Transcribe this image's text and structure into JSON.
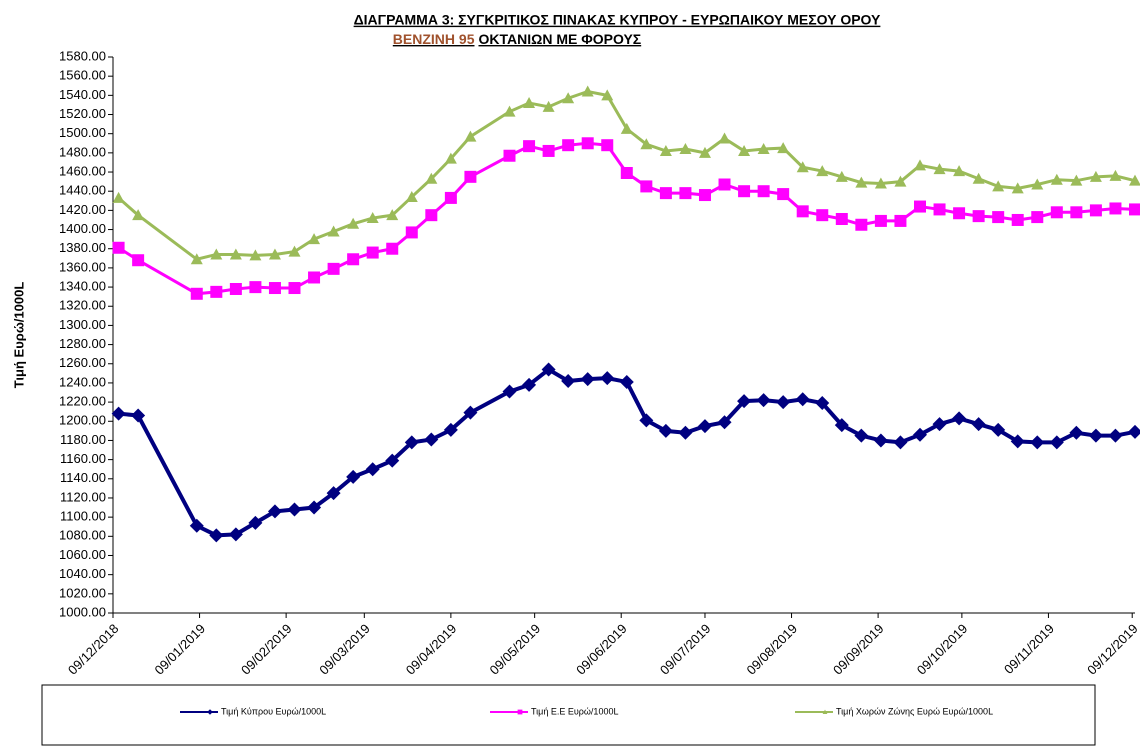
{
  "chart_data": {
    "type": "line",
    "title": "ΔΙΑΓΡΑΜΜΑ 3: ΣΥΓΚΡΙΤΙΚΟΣ ΠΙΝΑΚΑΣ ΚΥΠΡΟΥ - ΕΥΡΩΠΑΙΚΟΥ ΜΕΣΟΥ ΟΡΟΥ",
    "subtitle": [
      "ΒΕΝΖΙΝΗ 95",
      "ΟΚΤΑΝΙΩΝ ΜΕ ΦΟΡΟΥΣ"
    ],
    "subtitle_colors": [
      "#a0522d",
      "#000000"
    ],
    "y_label": "Τιμή Ευρώ/1000L",
    "x": [
      "11/12/2018",
      "18/12/2018",
      "08/01/2019",
      "15/01/2019",
      "22/01/2019",
      "29/01/2019",
      "05/02/2019",
      "12/02/2019",
      "19/02/2019",
      "26/02/2019",
      "05/03/2019",
      "12/03/2019",
      "19/03/2019",
      "26/03/2019",
      "02/04/2019",
      "09/04/2019",
      "16/04/2019",
      "30/04/2019",
      "07/05/2019",
      "14/05/2019",
      "21/05/2019",
      "28/05/2019",
      "04/06/2019",
      "11/06/2019",
      "18/06/2019",
      "25/06/2019",
      "02/07/2019",
      "09/07/2019",
      "16/07/2019",
      "23/07/2019",
      "30/07/2019",
      "06/08/2019",
      "13/08/2019",
      "20/08/2019",
      "27/08/2019",
      "03/09/2019",
      "10/09/2019",
      "17/09/2019",
      "24/09/2019",
      "01/10/2019",
      "08/10/2019",
      "15/10/2019",
      "22/10/2019",
      "29/10/2019",
      "05/11/2019",
      "12/11/2019",
      "19/11/2019",
      "26/11/2019",
      "03/12/2019",
      "10/12/2019"
    ],
    "series": [
      {
        "name": "Τιμή Κύπρου Ευρώ/1000L",
        "color": "#000080",
        "marker": "diamond",
        "values": [
          1208,
          1206,
          1091,
          1081,
          1082,
          1094,
          1106,
          1108,
          1110,
          1125,
          1142,
          1150,
          1159,
          1178,
          1181,
          1191,
          1209,
          1231,
          1238,
          1254,
          1242,
          1244,
          1245,
          1241,
          1201,
          1190,
          1188,
          1195,
          1199,
          1221,
          1222,
          1220,
          1223,
          1219,
          1196,
          1185,
          1180,
          1178,
          1186,
          1197,
          1203,
          1197,
          1191,
          1179,
          1178,
          1178,
          1188,
          1185,
          1185,
          1189
        ]
      },
      {
        "name": "Τιμή Ε.Ε Ευρώ/1000L",
        "color": "#ff00ff",
        "marker": "square",
        "values": [
          1381,
          1368,
          1333,
          1335,
          1338,
          1340,
          1339,
          1339,
          1350,
          1359,
          1369,
          1376,
          1380,
          1397,
          1415,
          1433,
          1455,
          1477,
          1487,
          1482,
          1488,
          1490,
          1488,
          1459,
          1445,
          1438,
          1438,
          1436,
          1447,
          1440,
          1440,
          1437,
          1419,
          1415,
          1411,
          1405,
          1409,
          1409,
          1424,
          1421,
          1417,
          1414,
          1413,
          1410,
          1413,
          1418,
          1418,
          1420,
          1422,
          1421
        ]
      },
      {
        "name": "Τιμή Χωρών  Ζώνης Ευρώ Ευρώ/1000L",
        "color": "#9bbb59",
        "marker": "triangle",
        "values": [
          1433,
          1415,
          1369,
          1374,
          1374,
          1373,
          1374,
          1377,
          1390,
          1398,
          1406,
          1412,
          1415,
          1434,
          1453,
          1474,
          1497,
          1523,
          1532,
          1528,
          1537,
          1544,
          1540,
          1505,
          1489,
          1482,
          1484,
          1480,
          1495,
          1482,
          1484,
          1485,
          1465,
          1461,
          1455,
          1449,
          1448,
          1450,
          1467,
          1463,
          1461,
          1453,
          1445,
          1443,
          1447,
          1452,
          1451,
          1455,
          1456,
          1451
        ]
      }
    ],
    "xlim": [
      "09/12/2018",
      "10/12/2019"
    ],
    "xticks": [
      "09/12/2018",
      "09/01/2019",
      "09/02/2019",
      "09/03/2019",
      "09/04/2019",
      "09/05/2019",
      "09/06/2019",
      "09/07/2019",
      "09/08/2019",
      "09/09/2019",
      "09/10/2019",
      "09/11/2019",
      "09/12/2019"
    ],
    "ylim": [
      1000,
      1580
    ],
    "yticks": [
      {
        "value": 1000,
        "label": "1000.00"
      },
      {
        "value": 1020,
        "label": "1020.00"
      },
      {
        "value": 1040,
        "label": "1040.00"
      },
      {
        "value": 1060,
        "label": "1060.00"
      },
      {
        "value": 1080,
        "label": "1080.00"
      },
      {
        "value": 1100,
        "label": "1100.00"
      },
      {
        "value": 1120,
        "label": "1120.00"
      },
      {
        "value": 1140,
        "label": "1140.00"
      },
      {
        "value": 1160,
        "label": "1160.00"
      },
      {
        "value": 1180,
        "label": "1180.00"
      },
      {
        "value": 1200,
        "label": "1200.00"
      },
      {
        "value": 1220,
        "label": "1220.00"
      },
      {
        "value": 1240,
        "label": "1240.00"
      },
      {
        "value": 1260,
        "label": "1260.00"
      },
      {
        "value": 1280,
        "label": "1280.00"
      },
      {
        "value": 1300,
        "label": "1300.00"
      },
      {
        "value": 1320,
        "label": "1320.00"
      },
      {
        "value": 1340,
        "label": "1340.00"
      },
      {
        "value": 1360,
        "label": "1360.00"
      },
      {
        "value": 1380,
        "label": "1380.00"
      },
      {
        "value": 1400,
        "label": "1400.00"
      },
      {
        "value": 1420,
        "label": "1420.00"
      },
      {
        "value": 1440,
        "label": "1440.00"
      },
      {
        "value": 1460,
        "label": "1460.00"
      },
      {
        "value": 1480,
        "label": "1480.00"
      },
      {
        "value": 1500,
        "label": "1500.00"
      },
      {
        "value": 1520,
        "label": "1520.00"
      },
      {
        "value": 1540,
        "label": "1540.00"
      },
      {
        "value": 1560,
        "label": "1560.00"
      },
      {
        "value": 1580,
        "label": "1580.00"
      }
    ],
    "grid": false,
    "legend": "bottom"
  }
}
